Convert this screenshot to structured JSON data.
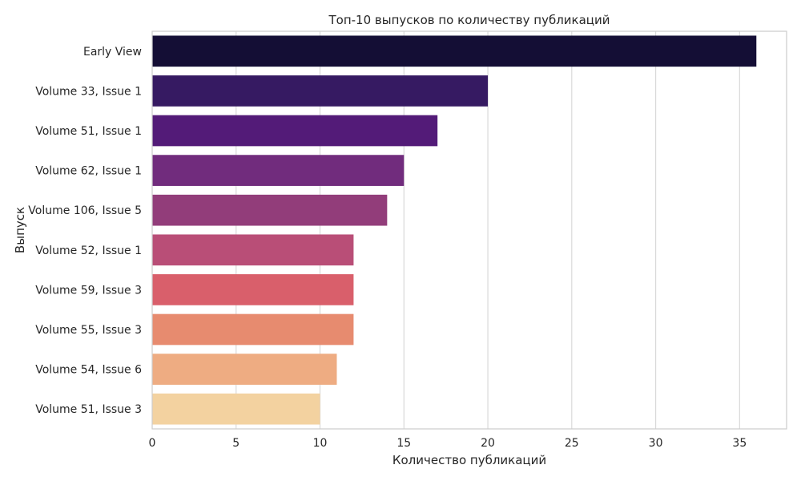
{
  "chart_data": {
    "type": "bar",
    "orientation": "horizontal",
    "title": "Топ-10 выпусков по количеству публикаций",
    "xlabel": "Количество публикаций",
    "ylabel": "Выпуск",
    "xlim": [
      0,
      37.8
    ],
    "xticks": [
      0,
      5,
      10,
      15,
      20,
      25,
      30,
      35
    ],
    "grid": "vertical",
    "categories": [
      "Early View",
      "Volume 33, Issue 1",
      "Volume 51, Issue 1",
      "Volume 62, Issue 1",
      "Volume 106, Issue 5",
      "Volume 52, Issue 1",
      "Volume 59, Issue 3",
      "Volume 55, Issue 3",
      "Volume 54, Issue 6",
      "Volume 51, Issue 3"
    ],
    "values": [
      36,
      20,
      17,
      15,
      14,
      12,
      12,
      12,
      11,
      10
    ],
    "colors": [
      "#140e35",
      "#361a62",
      "#531b78",
      "#712c7d",
      "#923d7a",
      "#b94e77",
      "#d95f6b",
      "#e78b6f",
      "#eeac82",
      "#f3d2a0"
    ]
  }
}
